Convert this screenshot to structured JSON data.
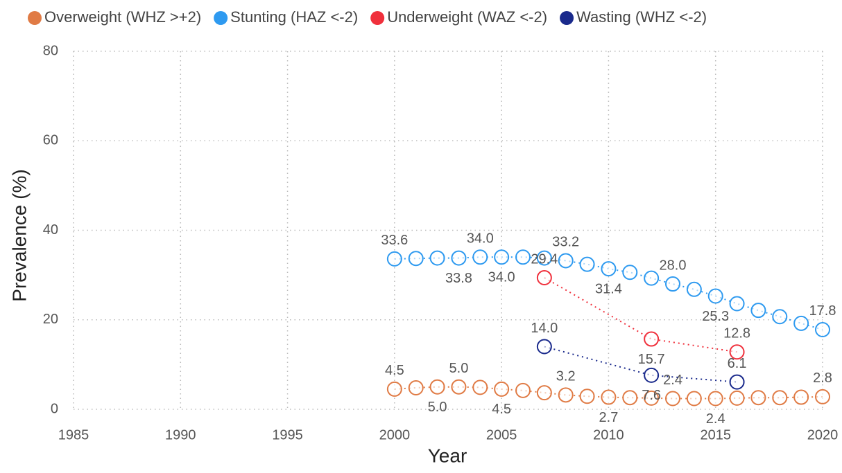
{
  "chart_data": {
    "type": "line",
    "xlabel": "Year",
    "ylabel": "Prevalence (%)",
    "xlim": [
      1985,
      2020
    ],
    "xticks": [
      1985,
      1990,
      1995,
      2000,
      2005,
      2010,
      2015,
      2020
    ],
    "ylim": [
      0,
      80
    ],
    "yticks": [
      0,
      20,
      40,
      60,
      80
    ],
    "grid": true,
    "legend": "top",
    "series": [
      {
        "name": "Overweight (WHZ >+2)",
        "color": "#e07b45",
        "x": [
          2000,
          2001,
          2002,
          2003,
          2004,
          2005,
          2006,
          2007,
          2008,
          2009,
          2010,
          2011,
          2012,
          2013,
          2014,
          2015,
          2016,
          2017,
          2018,
          2019,
          2020
        ],
        "values": [
          4.5,
          4.8,
          5.0,
          5.0,
          4.9,
          4.5,
          4.2,
          3.7,
          3.2,
          2.9,
          2.7,
          2.6,
          2.5,
          2.4,
          2.4,
          2.4,
          2.5,
          2.6,
          2.6,
          2.7,
          2.8
        ],
        "value_labels": [
          "4.5",
          null,
          "5.0",
          "5.0",
          null,
          "4.5",
          null,
          null,
          "3.2",
          null,
          "2.7",
          null,
          null,
          "2.4",
          null,
          "2.4",
          null,
          null,
          null,
          null,
          "2.8"
        ]
      },
      {
        "name": "Stunting (HAZ <-2)",
        "color": "#2e9af0",
        "x": [
          2000,
          2001,
          2002,
          2003,
          2004,
          2005,
          2006,
          2007,
          2008,
          2009,
          2010,
          2011,
          2012,
          2013,
          2014,
          2015,
          2016,
          2017,
          2018,
          2019,
          2020
        ],
        "values": [
          33.6,
          33.7,
          33.8,
          33.8,
          34.0,
          34.0,
          34.0,
          33.8,
          33.2,
          32.4,
          31.4,
          30.6,
          29.3,
          28.0,
          26.8,
          25.3,
          23.6,
          22.1,
          20.7,
          19.2,
          17.8
        ],
        "value_labels": [
          "33.6",
          null,
          null,
          "33.8",
          "34.0",
          "34.0",
          null,
          null,
          "33.2",
          null,
          "31.4",
          null,
          null,
          "28.0",
          null,
          "25.3",
          null,
          null,
          null,
          null,
          "17.8"
        ]
      },
      {
        "name": "Underweight (WAZ <-2)",
        "color": "#f0303c",
        "x": [
          2007,
          2012,
          2016
        ],
        "values": [
          29.4,
          15.7,
          12.8
        ],
        "value_labels": [
          "29.4",
          "15.7",
          "12.8"
        ]
      },
      {
        "name": "Wasting (WHZ <-2)",
        "color": "#1a2a8c",
        "x": [
          2007,
          2012,
          2016
        ],
        "values": [
          14.0,
          7.6,
          6.1
        ],
        "value_labels": [
          "14.0",
          "7.6",
          "6.1"
        ]
      }
    ]
  }
}
